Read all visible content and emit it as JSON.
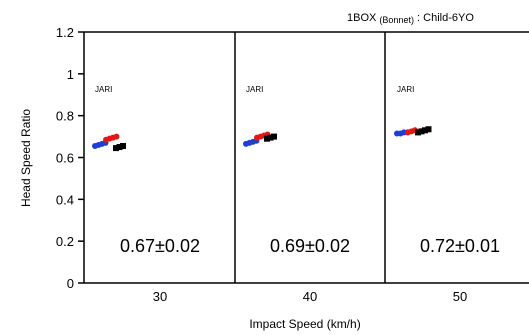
{
  "chart_data": {
    "type": "scatter",
    "title": {
      "prefix": "1BOX",
      "sub": "(Bonnet)",
      "suffix": ": Child-6YO"
    },
    "xlabel": "Impact Speed (km/h)",
    "ylabel": "Head Speed Ratio",
    "ylim": [
      0,
      1.2
    ],
    "yticks": [
      "0",
      "0.2",
      "0.4",
      "0.6",
      "0.8",
      "1",
      "1.2"
    ],
    "panels": [
      {
        "speed_label": "30",
        "source_label": "JARI",
        "ratio_label": "0.67±0.02",
        "series": [
          {
            "color": "#1f3fd0",
            "points": [
              0.655,
              0.66,
              0.665,
              0.67
            ]
          },
          {
            "color": "#e01818",
            "points": [
              0.685,
              0.69,
              0.695,
              0.7
            ]
          },
          {
            "color": "#000000",
            "points": [
              0.645,
              0.65,
              0.655
            ]
          }
        ]
      },
      {
        "speed_label": "40",
        "source_label": "JARI",
        "ratio_label": "0.69±0.02",
        "series": [
          {
            "color": "#1f3fd0",
            "points": [
              0.665,
              0.67,
              0.675,
              0.68
            ]
          },
          {
            "color": "#e01818",
            "points": [
              0.695,
              0.7,
              0.705,
              0.71
            ]
          },
          {
            "color": "#000000",
            "points": [
              0.69,
              0.695,
              0.7
            ]
          }
        ]
      },
      {
        "speed_label": "50",
        "source_label": "JARI",
        "ratio_label": "0.72±0.01",
        "series": [
          {
            "color": "#1f3fd0",
            "points": [
              0.715,
              0.715,
              0.72,
              0.72
            ]
          },
          {
            "color": "#e01818",
            "points": [
              0.72,
              0.725,
              0.73
            ]
          },
          {
            "color": "#000000",
            "points": [
              0.72,
              0.725,
              0.73,
              0.735
            ]
          }
        ]
      }
    ]
  }
}
